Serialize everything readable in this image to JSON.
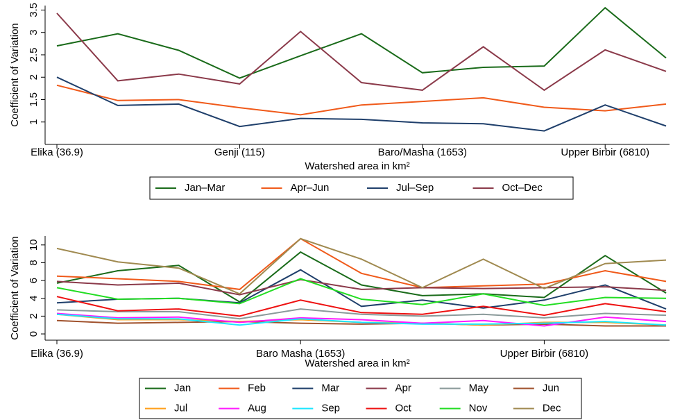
{
  "chart_data": [
    {
      "type": "line",
      "ylabel": "Coefficient of Variation",
      "xlabel": "Watershed area in km²",
      "categories": [
        "Elika (36.9)",
        null,
        null,
        "Genji (115)",
        null,
        null,
        "Baro/Masha (1653)",
        null,
        null,
        "Upper Birbir (6810)",
        null
      ],
      "ylim": [
        0.5,
        3.6
      ],
      "yticks": [
        1,
        1.5,
        2,
        2.5,
        3,
        3.5
      ],
      "legend": "bottom",
      "legend_columns": 4,
      "series": [
        {
          "name": "Jan–Mar",
          "color": "#1a6b1a",
          "values": [
            2.7,
            2.97,
            2.6,
            1.98,
            2.48,
            2.97,
            2.1,
            2.22,
            2.25,
            3.55,
            2.43
          ]
        },
        {
          "name": "Apr–Jun",
          "color": "#f05a1a",
          "values": [
            1.82,
            1.48,
            1.5,
            1.32,
            1.16,
            1.38,
            1.46,
            1.54,
            1.33,
            1.25,
            1.4
          ]
        },
        {
          "name": "Jul–Sep",
          "color": "#1f3f6b",
          "values": [
            2.0,
            1.37,
            1.4,
            0.9,
            1.08,
            1.06,
            0.98,
            0.96,
            0.8,
            1.38,
            0.91
          ]
        },
        {
          "name": "Oct–Dec",
          "color": "#8b3a4a",
          "values": [
            3.43,
            1.92,
            2.07,
            1.85,
            3.02,
            1.88,
            1.71,
            2.68,
            1.71,
            2.61,
            2.13
          ]
        }
      ]
    },
    {
      "type": "line",
      "ylabel": "Coefficient of Variation",
      "xlabel": "Watershed area in km²",
      "categories": [
        "Elika (36.9)",
        null,
        null,
        null,
        "Baro Masha (1653)",
        null,
        null,
        null,
        "Upper Birbir (6810)",
        null,
        null
      ],
      "ylim": [
        -0.7,
        11
      ],
      "yticks": [
        0,
        2,
        4,
        6,
        8,
        10
      ],
      "legend": "bottom",
      "legend_columns": 6,
      "series": [
        {
          "name": "Jan",
          "color": "#1a6b1a",
          "values": [
            5.7,
            7.1,
            7.7,
            3.6,
            9.2,
            5.5,
            4.3,
            4.5,
            4.1,
            8.8,
            4.6
          ]
        },
        {
          "name": "Feb",
          "color": "#f05a1a",
          "values": [
            6.5,
            6.2,
            5.9,
            5.0,
            10.7,
            6.8,
            5.2,
            5.4,
            5.6,
            7.1,
            5.9
          ]
        },
        {
          "name": "Mar",
          "color": "#1f3f6b",
          "values": [
            3.5,
            3.9,
            4.0,
            3.5,
            7.2,
            3.1,
            3.8,
            2.9,
            3.8,
            5.5,
            2.8
          ]
        },
        {
          "name": "Apr",
          "color": "#8b3a4a",
          "values": [
            5.9,
            5.5,
            5.7,
            4.4,
            6.1,
            5.0,
            5.2,
            5.1,
            5.2,
            5.3,
            4.9
          ]
        },
        {
          "name": "May",
          "color": "#8a9a9a",
          "values": [
            2.7,
            2.5,
            2.5,
            1.7,
            2.8,
            2.2,
            2.0,
            2.2,
            1.8,
            2.3,
            2.1
          ]
        },
        {
          "name": "Jun",
          "color": "#a0522d",
          "values": [
            1.5,
            1.2,
            1.3,
            1.4,
            1.2,
            1.1,
            1.2,
            1.0,
            1.1,
            0.9,
            0.9
          ]
        },
        {
          "name": "Jul",
          "color": "#ff9f1a",
          "values": [
            2.2,
            1.6,
            1.6,
            1.4,
            1.6,
            1.3,
            1.2,
            1.0,
            1.3,
            1.3,
            1.0
          ]
        },
        {
          "name": "Aug",
          "color": "#ff1aff",
          "values": [
            2.3,
            1.8,
            1.9,
            1.3,
            1.8,
            1.6,
            1.2,
            1.5,
            0.9,
            1.9,
            1.4
          ]
        },
        {
          "name": "Sep",
          "color": "#1ae6ff",
          "values": [
            2.2,
            1.7,
            1.7,
            1.0,
            1.7,
            1.3,
            1.1,
            1.1,
            1.2,
            1.4,
            1.0
          ]
        },
        {
          "name": "Oct",
          "color": "#ee1111",
          "values": [
            4.2,
            2.6,
            2.8,
            2.0,
            3.8,
            2.4,
            2.2,
            3.1,
            2.1,
            3.4,
            2.5
          ]
        },
        {
          "name": "Nov",
          "color": "#22dd22",
          "values": [
            5.2,
            3.9,
            4.0,
            3.4,
            6.2,
            3.9,
            3.3,
            4.5,
            3.2,
            4.1,
            4.0
          ]
        },
        {
          "name": "Dec",
          "color": "#a08a50",
          "values": [
            9.6,
            8.1,
            7.4,
            4.5,
            10.7,
            8.4,
            5.2,
            8.4,
            5.1,
            7.9,
            8.3
          ]
        }
      ]
    }
  ]
}
